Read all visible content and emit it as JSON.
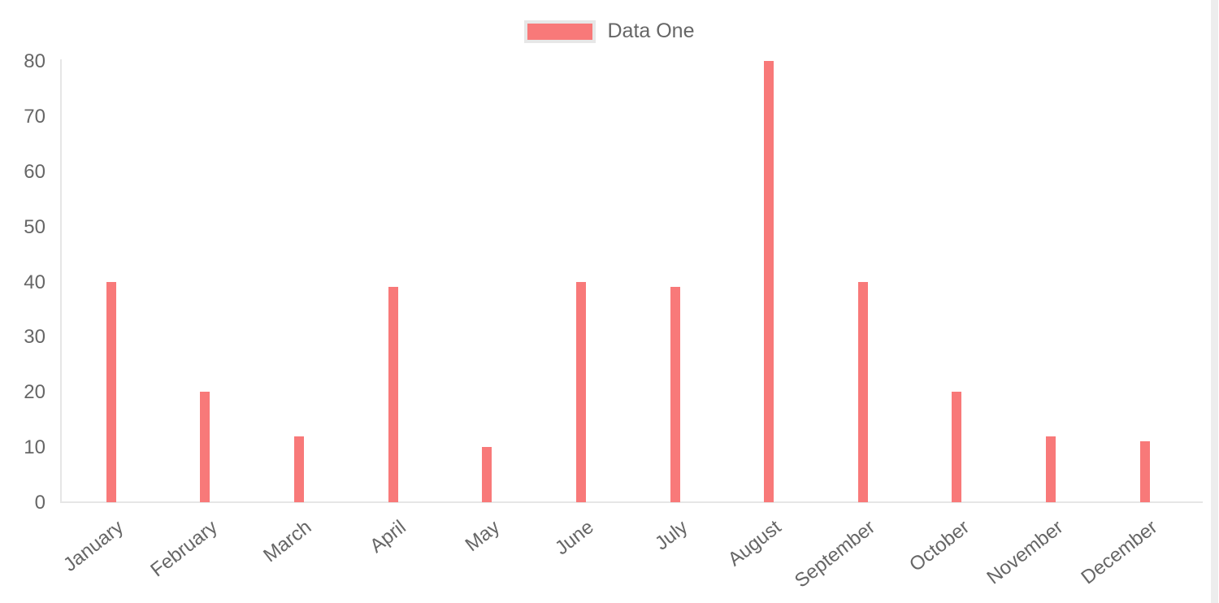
{
  "chart_data": {
    "type": "bar",
    "title": "",
    "categories": [
      "January",
      "February",
      "March",
      "April",
      "May",
      "June",
      "July",
      "August",
      "September",
      "October",
      "November",
      "December"
    ],
    "series": [
      {
        "name": "Data One",
        "color": "#f87979",
        "values": [
          40,
          20,
          12,
          39,
          10,
          40,
          39,
          80,
          40,
          20,
          12,
          11
        ]
      }
    ],
    "xlabel": "",
    "ylabel": "",
    "ylim": [
      0,
      80
    ],
    "y_axis": {
      "ticks": [
        0,
        10,
        20,
        30,
        40,
        50,
        60,
        70,
        80
      ],
      "tick_step": 10
    },
    "grid": "off",
    "legend_position": "top",
    "axis_color": "#e6e6e6",
    "tick_label_color": "#666666",
    "x_label_rotation_deg": -38
  },
  "legend": {
    "label": "Data One",
    "swatch_color": "#f87979",
    "swatch_border_color": "#e7e7e7"
  },
  "scrollbar": {
    "color": "#ededed"
  }
}
